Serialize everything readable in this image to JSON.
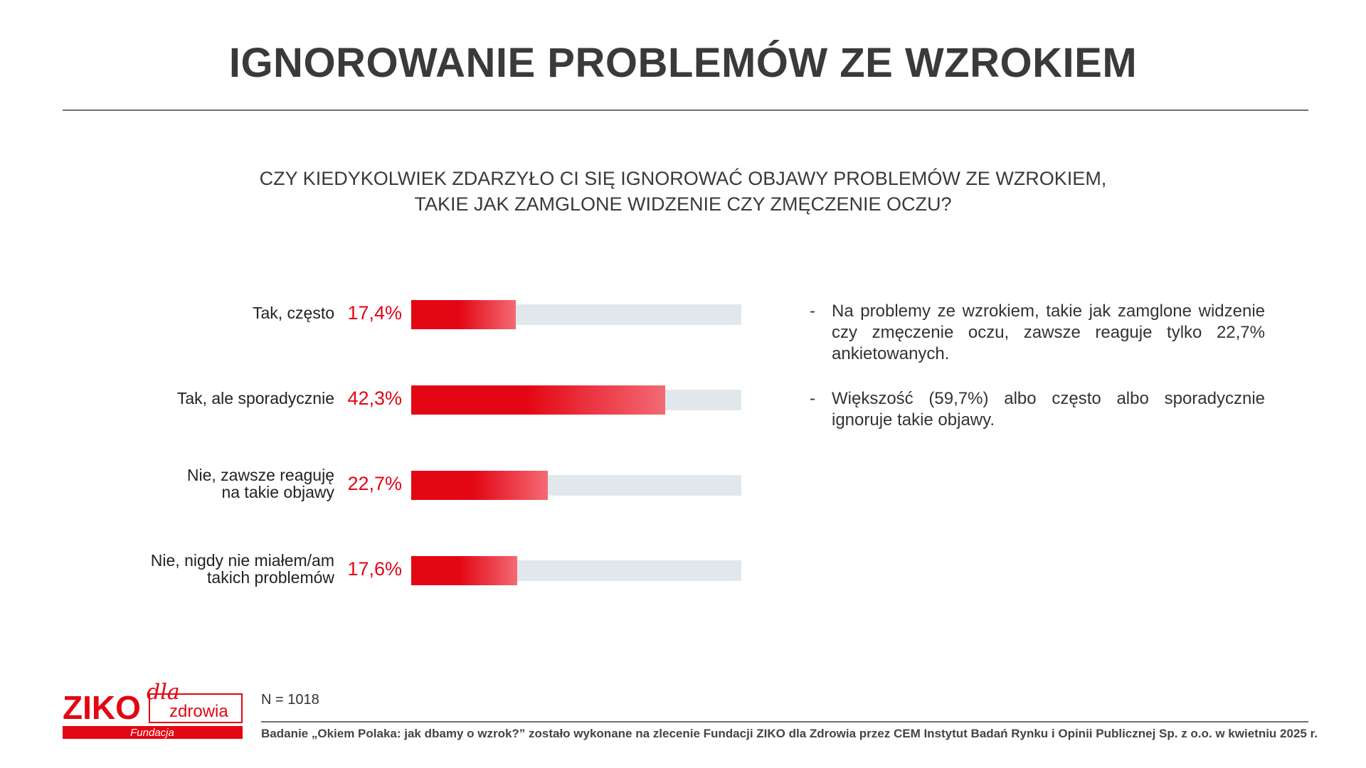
{
  "title": "IGNOROWANIE PROBLEMÓW ZE WZROKIEM",
  "question": [
    "CZY KIEDYKOLWIEK ZDARZYŁO CI SIĘ IGNOROWAĆ OBJAWY PROBLEMÓW ZE WZROKIEM,",
    "TAKIE JAK ZAMGLONE WIDZENIE CZY ZMĘCZENIE OCZU?"
  ],
  "chart_data": {
    "type": "bar",
    "orientation": "horizontal",
    "categories": [
      [
        "Tak, często"
      ],
      [
        "Tak, ale sporadycznie"
      ],
      [
        "Nie, zawsze reaguję",
        "na takie objawy"
      ],
      [
        "Nie, nigdy nie miałem/am",
        "takich problemów"
      ]
    ],
    "values": [
      17.4,
      42.3,
      22.7,
      17.6
    ],
    "value_labels": [
      "17,4%",
      "42,3%",
      "22,7%",
      "17,6%"
    ],
    "unit": "%",
    "title": "",
    "xlabel": "",
    "ylabel": "",
    "colors": {
      "bar": "#e30613",
      "track": "#e1e8eb"
    }
  },
  "notes": [
    {
      "dash": "-",
      "text": "Na problemy ze wzrokiem, takie jak zamglone widzenie czy zmęczenie oczu, zawsze reaguje tylko 22,7% ankietowanych."
    },
    {
      "dash": "-",
      "text": "Większość (59,7%) albo często albo sporadycznie ignoruje takie objawy."
    }
  ],
  "sample": "N = 1018",
  "footnote": "Badanie „Okiem Polaka: jak dbamy o wzrok?” zostało wykonane na zlecenie Fundacji ZIKO dla Zdrowia przez CEM Instytut Badań Rynku i Opinii Publicznej Sp. z o.o. w kwietniu 2025 r.",
  "logo": {
    "brand": "ZIKO",
    "dla": "dla",
    "zdrowia": "zdrowia",
    "fundacja": "Fundacja",
    "color": "#e30613"
  }
}
